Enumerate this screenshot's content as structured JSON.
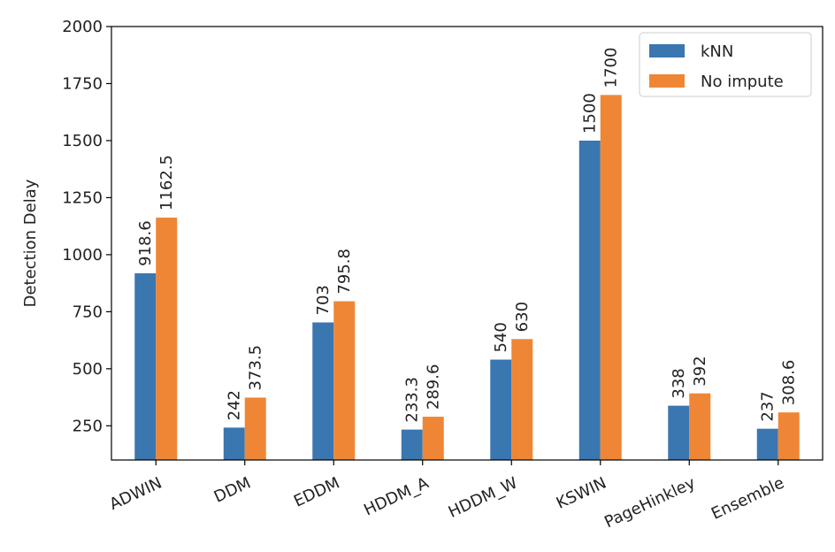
{
  "chart_data": {
    "type": "bar",
    "categories": [
      "ADWIN",
      "DDM",
      "EDDM",
      "HDDM_A",
      "HDDM_W",
      "KSWIN",
      "PageHinkley",
      "Ensemble"
    ],
    "series": [
      {
        "name": "kNN",
        "values": [
          918.6,
          242,
          703,
          233.3,
          540,
          1500,
          338,
          237
        ],
        "labels": [
          "918.6",
          "242",
          "703",
          "233.3",
          "540",
          "1500",
          "338",
          "237"
        ],
        "color": "#3a76b0"
      },
      {
        "name": "No impute",
        "values": [
          1162.5,
          373.5,
          795.8,
          289.6,
          630,
          1700,
          392,
          308.6
        ],
        "labels": [
          "1162.5",
          "373.5",
          "795.8",
          "289.6",
          "630",
          "1700",
          "392",
          "308.6"
        ],
        "color": "#ef8636"
      }
    ],
    "ylabel": "Detection Delay",
    "xlabel": "",
    "ylim": [
      100,
      2000
    ],
    "yticks": [
      250,
      500,
      750,
      1000,
      1250,
      1500,
      1750,
      2000
    ],
    "legend_position": "top-right",
    "grid": false
  }
}
